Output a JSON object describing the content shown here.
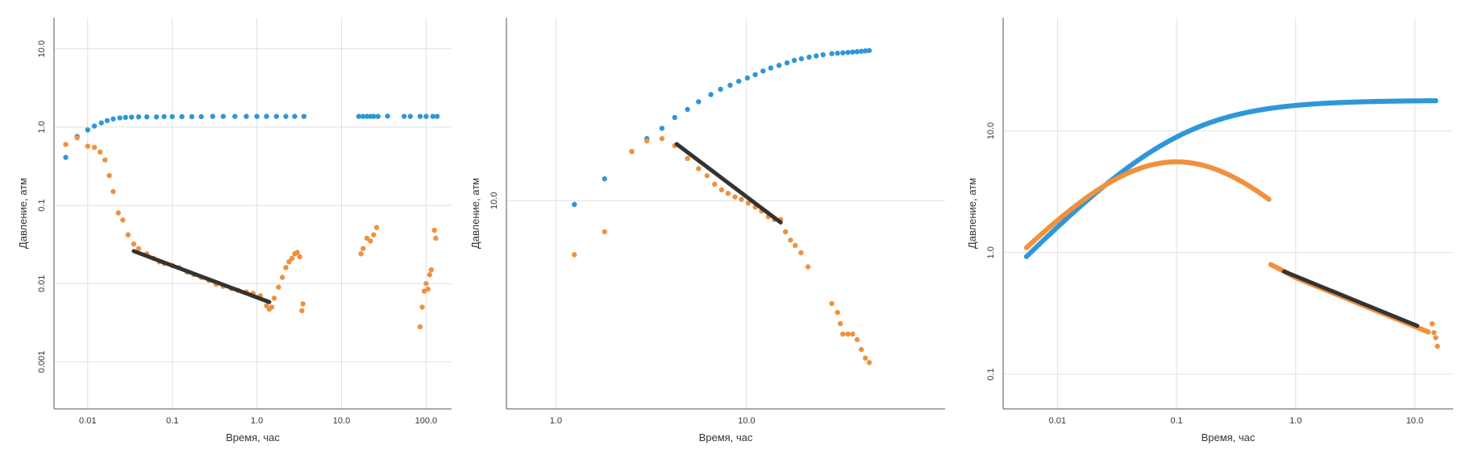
{
  "colors": {
    "series_blue": "#2e97d8",
    "series_orange": "#f0913e",
    "trend_line": "#333333",
    "grid": "#e1e1e1",
    "axis": "#555555"
  },
  "chart_data": [
    {
      "type": "scatter",
      "xscale": "log",
      "yscale": "log",
      "xlabel": "Время, час",
      "ylabel": "Давление, атм",
      "xlim": [
        0.004,
        200
      ],
      "ylim": [
        0.00025,
        25
      ],
      "xticks": [
        {
          "v": 0.01,
          "label": "0.01"
        },
        {
          "v": 0.1,
          "label": "0.1"
        },
        {
          "v": 1,
          "label": "1.0"
        },
        {
          "v": 10,
          "label": "10.0"
        },
        {
          "v": 100,
          "label": "100.0"
        }
      ],
      "yticks": [
        {
          "v": 0.001,
          "label": "0.001"
        },
        {
          "v": 0.01,
          "label": "0.01"
        },
        {
          "v": 0.1,
          "label": "0.1"
        },
        {
          "v": 1,
          "label": "1.0"
        },
        {
          "v": 10,
          "label": "10.0"
        }
      ],
      "grid": true,
      "series": [
        {
          "color": "#2e97d8",
          "points": [
            [
              0.0055,
              0.41
            ],
            [
              0.0075,
              0.76
            ],
            [
              0.01,
              0.92
            ],
            [
              0.012,
              1.03
            ],
            [
              0.0145,
              1.13
            ],
            [
              0.017,
              1.21
            ],
            [
              0.02,
              1.27
            ],
            [
              0.024,
              1.31
            ],
            [
              0.028,
              1.33
            ],
            [
              0.033,
              1.34
            ],
            [
              0.04,
              1.35
            ],
            [
              0.05,
              1.35
            ],
            [
              0.065,
              1.35
            ],
            [
              0.08,
              1.36
            ],
            [
              0.1,
              1.36
            ],
            [
              0.13,
              1.36
            ],
            [
              0.17,
              1.36
            ],
            [
              0.22,
              1.36
            ],
            [
              0.3,
              1.37
            ],
            [
              0.4,
              1.37
            ],
            [
              0.55,
              1.37
            ],
            [
              0.75,
              1.37
            ],
            [
              1.0,
              1.37
            ],
            [
              1.3,
              1.37
            ],
            [
              1.7,
              1.37
            ],
            [
              2.2,
              1.37
            ],
            [
              2.8,
              1.37
            ],
            [
              3.6,
              1.37
            ],
            [
              16,
              1.37
            ],
            [
              18,
              1.37
            ],
            [
              20,
              1.37
            ],
            [
              22,
              1.37
            ],
            [
              24,
              1.37
            ],
            [
              27,
              1.37
            ],
            [
              35,
              1.38
            ],
            [
              55,
              1.37
            ],
            [
              65,
              1.37
            ],
            [
              85,
              1.37
            ],
            [
              100,
              1.37
            ],
            [
              120,
              1.37
            ],
            [
              135,
              1.37
            ]
          ]
        },
        {
          "color": "#f0913e",
          "points": [
            [
              0.0055,
              0.6
            ],
            [
              0.0075,
              0.73
            ],
            [
              0.01,
              0.57
            ],
            [
              0.012,
              0.55
            ],
            [
              0.014,
              0.48
            ],
            [
              0.016,
              0.38
            ],
            [
              0.018,
              0.24
            ],
            [
              0.02,
              0.15
            ],
            [
              0.023,
              0.08
            ],
            [
              0.026,
              0.065
            ],
            [
              0.03,
              0.042
            ],
            [
              0.035,
              0.032
            ],
            [
              0.04,
              0.028
            ],
            [
              0.05,
              0.024
            ],
            [
              0.06,
              0.021
            ],
            [
              0.07,
              0.019
            ],
            [
              0.08,
              0.018
            ],
            [
              0.1,
              0.017
            ],
            [
              0.12,
              0.016
            ],
            [
              0.15,
              0.014
            ],
            [
              0.18,
              0.013
            ],
            [
              0.22,
              0.012
            ],
            [
              0.27,
              0.011
            ],
            [
              0.33,
              0.0098
            ],
            [
              0.4,
              0.0092
            ],
            [
              0.5,
              0.0086
            ],
            [
              0.6,
              0.0082
            ],
            [
              0.75,
              0.0078
            ],
            [
              0.9,
              0.0075
            ],
            [
              1.1,
              0.007
            ],
            [
              1.3,
              0.0052
            ],
            [
              1.4,
              0.0047
            ],
            [
              1.5,
              0.005
            ],
            [
              1.6,
              0.0065
            ],
            [
              1.8,
              0.009
            ],
            [
              2.0,
              0.012
            ],
            [
              2.2,
              0.016
            ],
            [
              2.4,
              0.019
            ],
            [
              2.6,
              0.021
            ],
            [
              2.8,
              0.024
            ],
            [
              3.0,
              0.025
            ],
            [
              3.2,
              0.022
            ],
            [
              3.4,
              0.0045
            ],
            [
              3.5,
              0.0055
            ],
            [
              17,
              0.024
            ],
            [
              18,
              0.028
            ],
            [
              20,
              0.038
            ],
            [
              22,
              0.035
            ],
            [
              24,
              0.042
            ],
            [
              26,
              0.052
            ],
            [
              85,
              0.0028
            ],
            [
              90,
              0.005
            ],
            [
              95,
              0.008
            ],
            [
              100,
              0.01
            ],
            [
              105,
              0.0085
            ],
            [
              110,
              0.013
            ],
            [
              115,
              0.015
            ],
            [
              125,
              0.048
            ],
            [
              130,
              0.038
            ]
          ]
        }
      ],
      "trend_line": [
        [
          0.035,
          0.026
        ],
        [
          1.4,
          0.0058
        ]
      ]
    },
    {
      "type": "scatter",
      "xscale": "log",
      "yscale": "log",
      "xlabel": "Время, час",
      "ylabel": "Давление, атм",
      "xlim": [
        0.55,
        110
      ],
      "ylim": [
        1.9,
        43
      ],
      "xticks": [
        {
          "v": 1,
          "label": "1.0"
        },
        {
          "v": 10,
          "label": "10.0"
        }
      ],
      "yticks": [
        {
          "v": 10,
          "label": "10.0"
        }
      ],
      "grid": true,
      "series": [
        {
          "color": "#2e97d8",
          "points": [
            [
              1.25,
              9.7
            ],
            [
              1.8,
              11.9
            ],
            [
              2.5,
              14.8
            ],
            [
              3.0,
              16.4
            ],
            [
              3.6,
              17.8
            ],
            [
              4.2,
              19.4
            ],
            [
              4.9,
              20.7
            ],
            [
              5.6,
              22.0
            ],
            [
              6.5,
              23.3
            ],
            [
              7.3,
              24.3
            ],
            [
              8.2,
              25.1
            ],
            [
              9.1,
              25.9
            ],
            [
              10.1,
              26.6
            ],
            [
              11.1,
              27.3
            ],
            [
              12.2,
              28.1
            ],
            [
              13.4,
              28.8
            ],
            [
              14.8,
              29.4
            ],
            [
              16.3,
              30.0
            ],
            [
              17.8,
              30.6
            ],
            [
              19.4,
              31.0
            ],
            [
              21.3,
              31.4
            ],
            [
              23.2,
              31.7
            ],
            [
              25.2,
              32.0
            ],
            [
              28,
              32.3
            ],
            [
              30,
              32.4
            ],
            [
              32,
              32.5
            ],
            [
              34,
              32.6
            ],
            [
              36,
              32.7
            ],
            [
              38,
              32.8
            ],
            [
              40,
              32.9
            ],
            [
              42,
              33.0
            ],
            [
              44,
              33.1
            ]
          ]
        },
        {
          "color": "#f0913e",
          "points": [
            [
              1.25,
              6.5
            ],
            [
              1.8,
              7.8
            ],
            [
              2.5,
              14.8
            ],
            [
              3.0,
              16.1
            ],
            [
              3.6,
              16.4
            ],
            [
              4.2,
              15.5
            ],
            [
              4.9,
              14.0
            ],
            [
              5.6,
              12.9
            ],
            [
              6.2,
              12.2
            ],
            [
              6.8,
              11.4
            ],
            [
              7.4,
              10.9
            ],
            [
              8.0,
              10.6
            ],
            [
              8.7,
              10.3
            ],
            [
              9.4,
              10.1
            ],
            [
              10.2,
              9.8
            ],
            [
              11.1,
              9.5
            ],
            [
              12.0,
              9.2
            ],
            [
              13.0,
              8.8
            ],
            [
              14.0,
              8.6
            ],
            [
              15.1,
              8.6
            ],
            [
              16.0,
              7.8
            ],
            [
              17.0,
              7.3
            ],
            [
              18.0,
              7.0
            ],
            [
              19.3,
              6.6
            ],
            [
              21,
              5.9
            ],
            [
              28,
              4.4
            ],
            [
              30,
              4.1
            ],
            [
              31,
              3.75
            ],
            [
              32,
              3.45
            ],
            [
              34,
              3.45
            ],
            [
              36,
              3.45
            ],
            [
              38,
              3.3
            ],
            [
              40,
              3.05
            ],
            [
              42,
              2.85
            ],
            [
              44,
              2.75
            ]
          ]
        }
      ],
      "trend_line": [
        [
          4.3,
          15.7
        ],
        [
          15.1,
          8.4
        ]
      ]
    },
    {
      "type": "scatter",
      "xscale": "log",
      "yscale": "log",
      "xlabel": "Время, час",
      "ylabel": "Давление, атм",
      "xlim": [
        0.0035,
        21
      ],
      "ylim": [
        0.052,
        85
      ],
      "xticks": [
        {
          "v": 0.01,
          "label": "0.01"
        },
        {
          "v": 0.1,
          "label": "0.1"
        },
        {
          "v": 1,
          "label": "1.0"
        },
        {
          "v": 10,
          "label": "10.0"
        }
      ],
      "yticks": [
        {
          "v": 0.1,
          "label": "0.1"
        },
        {
          "v": 1,
          "label": "1.0"
        },
        {
          "v": 10,
          "label": "10.0"
        }
      ],
      "grid": true,
      "series": [
        {
          "color": "#2e97d8",
          "curve": {
            "start": 0.0055,
            "end": 15,
            "n": 200,
            "formula": "blue"
          },
          "points": []
        },
        {
          "color": "#f0913e",
          "curve": {
            "start": 0.0055,
            "end": 13,
            "n": 200,
            "formula": "orange"
          },
          "points": [
            [
              14,
              0.26
            ],
            [
              14.5,
              0.22
            ],
            [
              15,
              0.2
            ],
            [
              15.5,
              0.17
            ]
          ]
        }
      ],
      "trend_line": [
        [
          0.8,
          0.7
        ],
        [
          10.5,
          0.25
        ]
      ]
    }
  ]
}
